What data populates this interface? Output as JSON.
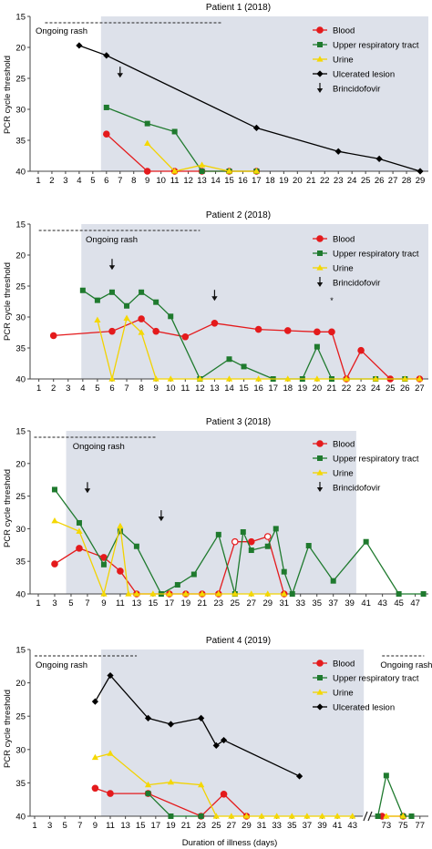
{
  "figure": {
    "xlabel": "Duration of illness (days)",
    "ylabel": "PCR cycle threshold",
    "rash_label": "Ongoing rash",
    "legend_labels": {
      "blood": "Blood",
      "upper": "Upper respiratory tract",
      "urine": "Urine",
      "lesion": "Ulcerated lesion",
      "brinci": "Brincidofovir"
    }
  },
  "colors": {
    "blood": "#e41a1c",
    "upper": "#1f7a2e",
    "urine": "#f5d800",
    "lesion": "#000000",
    "shade": "#dde1ea",
    "axis": "#444444"
  },
  "chart_data": [
    {
      "type": "line",
      "title": "Patient 1 (2018)",
      "ylim": [
        40,
        15
      ],
      "yticks": [
        15,
        20,
        25,
        30,
        35,
        40
      ],
      "x_tick_labels": [
        "1",
        "2",
        "3",
        "4",
        "5",
        "6",
        "7",
        "8",
        "9",
        "10",
        "11",
        "12",
        "13",
        "14",
        "15",
        "16",
        "17",
        "18",
        "19",
        "20",
        "21",
        "22",
        "23",
        "24",
        "25",
        "26",
        "27",
        "28",
        "29"
      ],
      "shaded_days": [
        5.6,
        29.6
      ],
      "rash_days": [
        1.5,
        14.5
      ],
      "legend": [
        "blood",
        "upper",
        "urine",
        "lesion",
        "brinci"
      ],
      "arrows": [
        {
          "day": 7,
          "ct": 24
        }
      ],
      "stars": [],
      "series": [
        {
          "key": "blood",
          "name": "Blood",
          "x": [
            6,
            9,
            11,
            13,
            15,
            17
          ],
          "y": [
            34,
            40,
            40,
            40,
            40,
            40
          ]
        },
        {
          "key": "upper",
          "name": "Upper respiratory tract",
          "x": [
            6,
            9,
            11,
            13,
            15,
            17
          ],
          "y": [
            29.7,
            32.3,
            33.6,
            40,
            40,
            40
          ]
        },
        {
          "key": "urine",
          "name": "Urine",
          "x": [
            9,
            11,
            13,
            15,
            17
          ],
          "y": [
            35.5,
            40,
            39,
            40,
            40
          ]
        },
        {
          "key": "lesion",
          "name": "Ulcerated lesion",
          "x": [
            4,
            6,
            17,
            23,
            26,
            29
          ],
          "y": [
            19.7,
            21.3,
            33,
            36.8,
            38,
            40
          ]
        }
      ]
    },
    {
      "type": "line",
      "title": "Patient 2 (2018)",
      "ylim": [
        40,
        15
      ],
      "yticks": [
        15,
        20,
        25,
        30,
        35,
        40
      ],
      "x_tick_labels": [
        "1",
        "2",
        "3",
        "4",
        "5",
        "6",
        "7",
        "8",
        "9",
        "10",
        "11",
        "12",
        "13",
        "14",
        "15",
        "16",
        "17",
        "18",
        "19",
        "20",
        "21",
        "22",
        "23",
        "24",
        "25",
        "26",
        "27"
      ],
      "shaded_days": [
        3.9,
        27.6
      ],
      "rash_days": [
        1,
        12
      ],
      "legend": [
        "blood",
        "upper",
        "urine",
        "brinci"
      ],
      "arrows": [
        {
          "day": 6,
          "ct": 21.5
        },
        {
          "day": 13,
          "ct": 26.5
        }
      ],
      "stars": [
        {
          "day": 21,
          "ct": 27.8,
          "text": "*"
        }
      ],
      "series": [
        {
          "key": "blood",
          "name": "Blood",
          "x": [
            2,
            6,
            8,
            9,
            11,
            13,
            16,
            18,
            20,
            21,
            22,
            23,
            25,
            27
          ],
          "y": [
            33,
            32.3,
            30.3,
            32.3,
            33.2,
            31,
            32,
            32.2,
            32.4,
            32.4,
            40,
            35.4,
            40,
            40
          ]
        },
        {
          "key": "upper",
          "name": "Upper respiratory tract",
          "x": [
            4,
            5,
            6,
            7,
            8,
            9,
            10,
            12,
            14,
            15,
            17,
            19,
            20,
            21,
            24,
            26
          ],
          "y": [
            25.7,
            27.3,
            26,
            28.2,
            26,
            27.6,
            29.9,
            40,
            36.8,
            38,
            40,
            40,
            34.8,
            40,
            40,
            40
          ]
        },
        {
          "key": "urine",
          "name": "Urine",
          "x": [
            5,
            6,
            7,
            8,
            9,
            10,
            12,
            14,
            16,
            18,
            20,
            22,
            24,
            26,
            27
          ],
          "y": [
            30.5,
            40,
            30.2,
            32.5,
            40,
            40,
            40,
            40,
            40,
            40,
            40,
            40,
            40,
            40,
            40
          ]
        }
      ]
    },
    {
      "type": "line",
      "title": "Patient 3 (2018)",
      "ylim": [
        40,
        15
      ],
      "yticks": [
        15,
        20,
        25,
        30,
        35,
        40
      ],
      "x_tick_labels": [
        "1",
        "3",
        "5",
        "7",
        "9",
        "11",
        "13",
        "15",
        "17",
        "19",
        "21",
        "23",
        "25",
        "27",
        "29",
        "31",
        "33",
        "35",
        "37",
        "39",
        "41",
        "43",
        "45",
        "47"
      ],
      "shaded_days": [
        4.4,
        39.8
      ],
      "rash_days": [
        0.5,
        15.5
      ],
      "legend": [
        "blood",
        "upper",
        "urine",
        "brinci"
      ],
      "arrows": [
        {
          "day": 7,
          "ct": 23.7
        },
        {
          "day": 16,
          "ct": 28
        }
      ],
      "stars": [],
      "series": [
        {
          "key": "blood",
          "name": "Blood",
          "x": [
            3,
            6,
            9,
            11,
            13,
            17,
            19,
            21,
            23,
            25,
            27,
            29,
            31
          ],
          "y": [
            35.4,
            33,
            34.4,
            36.5,
            40,
            40,
            40,
            40,
            40,
            32,
            32,
            31.2,
            40
          ],
          "open_points": [
            {
              "x": 25,
              "y": 32
            },
            {
              "x": 29,
              "y": 31.2
            }
          ]
        },
        {
          "key": "upper",
          "name": "Upper respiratory tract",
          "x": [
            3,
            6,
            9,
            11,
            13,
            16,
            18,
            20,
            23,
            25,
            26,
            27,
            29,
            30,
            31,
            32,
            34,
            37,
            41,
            45,
            48
          ],
          "y": [
            24,
            29.1,
            35.5,
            30.4,
            32.7,
            40,
            38.6,
            37,
            30.9,
            40,
            30.5,
            33.3,
            32.7,
            30,
            36.6,
            40,
            32.6,
            38,
            32,
            40,
            40
          ]
        },
        {
          "key": "urine",
          "name": "Urine",
          "x": [
            3,
            6,
            9,
            11,
            12,
            13,
            15,
            17,
            19,
            21,
            23,
            25,
            27,
            29,
            31
          ],
          "y": [
            28.8,
            30.4,
            40,
            29.6,
            40,
            40,
            40,
            40,
            40,
            40,
            40,
            40,
            40,
            40,
            40
          ]
        }
      ]
    },
    {
      "type": "line",
      "title": "Patient 4 (2019)",
      "ylim": [
        40,
        15
      ],
      "yticks": [
        15,
        20,
        25,
        30,
        35,
        40
      ],
      "x_tick_labels": [
        "1",
        "3",
        "5",
        "7",
        "9",
        "11",
        "13",
        "15",
        "17",
        "19",
        "21",
        "23",
        "25",
        "27",
        "29",
        "31",
        "33",
        "35",
        "37",
        "39",
        "41",
        "43",
        "73",
        "75",
        "77"
      ],
      "shaded_days": [
        9.8,
        44.5
      ],
      "rash_days": [
        1,
        14.5
      ],
      "rash_days_2": [
        72.5,
        77.5
      ],
      "axis_break_after": 43,
      "legend": [
        "blood",
        "upper",
        "urine",
        "lesion"
      ],
      "arrows": [],
      "stars": [],
      "series": [
        {
          "key": "blood",
          "name": "Blood",
          "x": [
            9,
            11,
            16,
            23,
            26,
            29,
            72.5,
            75
          ],
          "y": [
            35.8,
            36.6,
            36.6,
            40,
            36.7,
            40,
            40,
            40
          ],
          "break_before": 6
        },
        {
          "key": "upper",
          "name": "Upper respiratory tract",
          "x": [
            16,
            19,
            23,
            72,
            73,
            75,
            76
          ],
          "y": [
            36.6,
            40,
            40,
            40,
            33.9,
            40,
            40
          ],
          "break_before": 3
        },
        {
          "key": "urine",
          "name": "Urine",
          "x": [
            9,
            11,
            16,
            19,
            23,
            25,
            27,
            29,
            31,
            33,
            35,
            37,
            39,
            41,
            43,
            73,
            75
          ],
          "y": [
            31.2,
            30.6,
            35.3,
            34.9,
            35.3,
            40,
            40,
            40,
            40,
            40,
            40,
            40,
            40,
            40,
            40,
            40,
            40
          ],
          "break_before": 15
        },
        {
          "key": "lesion",
          "name": "Ulcerated lesion",
          "x": [
            9,
            11,
            16,
            19,
            23,
            25,
            26,
            36
          ],
          "y": [
            22.8,
            18.9,
            25.3,
            26.2,
            25.3,
            29.4,
            28.6,
            34
          ]
        }
      ]
    }
  ]
}
